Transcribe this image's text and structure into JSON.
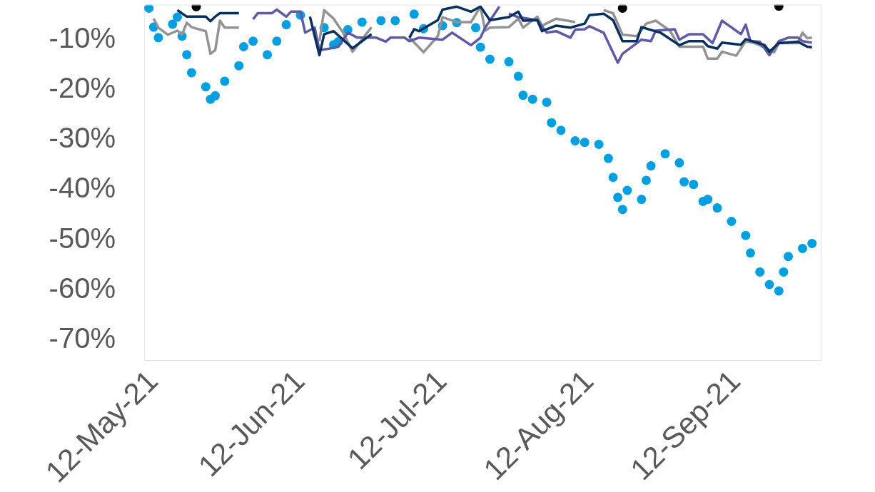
{
  "chart_data": {
    "type": "line",
    "marker": "none",
    "line_style": "solid",
    "xlim": [
      "2021-05-10",
      "2021-09-30"
    ],
    "xticks": [
      {
        "value": "2021-05-12",
        "label": "12-May-21"
      },
      {
        "value": "2021-06-12",
        "label": "12-Jun-21"
      },
      {
        "value": "2021-07-12",
        "label": "12-Jul-21"
      },
      {
        "value": "2021-08-12",
        "label": "12-Aug-21"
      },
      {
        "value": "2021-09-12",
        "label": "12-Sep-21"
      }
    ],
    "ylim": [
      -74,
      -3
    ],
    "yticks": [
      {
        "value": -70,
        "label": "-70%"
      },
      {
        "value": -60,
        "label": "-60%"
      },
      {
        "value": -50,
        "label": "-50%"
      },
      {
        "value": -40,
        "label": "-40%"
      },
      {
        "value": -30,
        "label": "-30%"
      },
      {
        "value": -20,
        "label": "-20%"
      },
      {
        "value": -10,
        "label": "-10%"
      }
    ],
    "series": [
      {
        "type": "scatter",
        "marker": "circle",
        "color": "#000000",
        "x": [
          "2021-05-21",
          "2021-08-19",
          "2021-09-21"
        ],
        "values": [
          -3.4,
          -3.7,
          -3.3
        ]
      },
      {
        "color": "#06305e",
        "x": [
          "2021-05-17",
          "2021-05-19",
          "2021-05-23",
          "2021-05-24",
          "2021-05-25",
          "2021-05-26",
          "2021-05-30",
          "2021-05-31",
          "2021-06-12",
          "2021-06-14",
          "2021-06-16",
          "2021-06-17",
          "2021-06-19",
          "2021-06-23",
          "2021-06-27",
          "2021-06-28",
          "2021-07-03",
          "2021-07-05",
          "2021-07-06",
          "2021-07-07",
          "2021-07-11",
          "2021-07-12",
          "2021-07-15",
          "2021-07-18",
          "2021-07-20",
          "2021-07-22",
          "2021-07-26",
          "2021-07-28",
          "2021-07-29",
          "2021-08-01",
          "2021-08-02",
          "2021-08-05",
          "2021-08-08",
          "2021-08-11",
          "2021-08-12",
          "2021-08-15",
          "2021-08-17",
          "2021-08-19",
          "2021-08-22",
          "2021-08-23",
          "2021-08-27",
          "2021-08-31",
          "2021-09-02",
          "2021-09-05",
          "2021-09-06",
          "2021-09-08",
          "2021-09-09",
          "2021-09-13",
          "2021-09-14",
          "2021-09-18",
          "2021-09-19",
          "2021-09-21",
          "2021-09-25",
          "2021-09-27",
          "2021-09-28"
        ],
        "values": [
          -4.1,
          -5.4,
          -5.4,
          -6.3,
          -5.4,
          -4.7,
          -4.7,
          null,
          null,
          -5.4,
          -13.1,
          -8.9,
          -8.3,
          -11.7,
          -8.9,
          null,
          null,
          -9.6,
          -7.9,
          -8.3,
          -6.1,
          -4.0,
          -3.4,
          -4.4,
          -3.4,
          -6.1,
          -5.5,
          -4.4,
          -6.2,
          -6.1,
          -8.3,
          -7.2,
          -7.6,
          -6.8,
          -5.1,
          -4.8,
          -6.1,
          -10.3,
          -10.3,
          -7.5,
          -8.6,
          -11.1,
          -10.3,
          -10.3,
          -11.3,
          -11.8,
          -10.6,
          -11.0,
          -9.9,
          -11.1,
          -12.4,
          -10.7,
          -10.4,
          -11.4,
          -11.5
        ]
      },
      {
        "color": "#5f5aa8",
        "x": [
          "2021-06-02",
          "2021-06-03",
          "2021-06-06",
          "2021-06-07",
          "2021-06-09",
          "2021-06-10",
          "2021-06-12",
          "2021-06-13",
          "2021-06-15",
          "2021-06-16",
          "2021-06-18",
          "2021-06-20",
          "2021-06-21",
          "2021-06-22",
          "2021-06-24",
          "2021-06-28",
          "2021-06-30",
          "2021-07-01",
          "2021-07-04",
          "2021-07-05",
          "2021-07-07",
          "2021-07-12",
          "2021-07-14",
          "2021-07-18",
          "2021-07-20",
          "2021-07-21",
          "2021-07-24",
          "2021-07-25",
          "2021-07-26",
          "2021-07-28",
          "2021-08-01",
          "2021-08-03",
          "2021-08-05",
          "2021-08-08",
          "2021-08-09",
          "2021-08-11",
          "2021-08-12",
          "2021-08-15",
          "2021-08-18",
          "2021-08-19",
          "2021-08-23",
          "2021-08-25",
          "2021-08-26",
          "2021-08-30",
          "2021-08-31",
          "2021-09-02",
          "2021-09-05",
          "2021-09-07",
          "2021-09-09",
          "2021-09-13",
          "2021-09-14",
          "2021-09-15",
          "2021-09-17",
          "2021-09-19",
          "2021-09-21",
          "2021-09-23",
          "2021-09-25",
          "2021-09-26",
          "2021-09-28"
        ],
        "values": [
          -5.9,
          -4.7,
          -4.7,
          -4.0,
          -5.4,
          -4.4,
          -4.4,
          -8.6,
          -7.6,
          -12.1,
          -11.8,
          -11.4,
          -10.0,
          -8.6,
          -9.6,
          -9.6,
          -10.4,
          -9.6,
          -9.6,
          -10.3,
          -9.6,
          -10.0,
          -8.6,
          -11.1,
          -9.6,
          -7.6,
          -3.4,
          null,
          -4.8,
          -5.5,
          -6.1,
          -8.6,
          -8.3,
          -9.6,
          -8.0,
          -7.9,
          -7.3,
          -8.6,
          -14.6,
          -12.8,
          -10.0,
          -10.3,
          -8.2,
          -7.9,
          -10.0,
          -8.9,
          -8.9,
          -10.7,
          -6.2,
          -8.9,
          -7.0,
          -10.3,
          -10.4,
          -13.1,
          -10.3,
          -9.6,
          -9.6,
          -10.3,
          -10.6
        ]
      },
      {
        "color": "#939393",
        "x": [
          "2021-05-12",
          "2021-05-13",
          "2021-05-15",
          "2021-05-17",
          "2021-05-18",
          "2021-05-19",
          "2021-05-20",
          "2021-05-23",
          "2021-05-24",
          "2021-05-25",
          "2021-05-26",
          "2021-05-27",
          "2021-05-30",
          "2021-05-31",
          "2021-06-14",
          "2021-06-16",
          "2021-06-17",
          "2021-06-19",
          "2021-06-21",
          "2021-06-23",
          "2021-06-27",
          "2021-06-28",
          "2021-07-05",
          "2021-07-08",
          "2021-07-11",
          "2021-07-12",
          "2021-07-15",
          "2021-07-18",
          "2021-07-20",
          "2021-07-21",
          "2021-07-22",
          "2021-07-26",
          "2021-07-28",
          "2021-07-29",
          "2021-08-01",
          "2021-08-02",
          "2021-08-05",
          "2021-08-09",
          "2021-08-11",
          "2021-08-15",
          "2021-08-17",
          "2021-08-19",
          "2021-08-22",
          "2021-08-24",
          "2021-08-26",
          "2021-08-29",
          "2021-08-31",
          "2021-09-05",
          "2021-09-06",
          "2021-09-08",
          "2021-09-09",
          "2021-09-12",
          "2021-09-14",
          "2021-09-16",
          "2021-09-20",
          "2021-09-21",
          "2021-09-25",
          "2021-09-26",
          "2021-09-27",
          "2021-09-28"
        ],
        "values": [
          -5.8,
          -7.6,
          -9.0,
          -8.2,
          -9.0,
          -6.6,
          -7.5,
          -8.3,
          -12.8,
          -12.1,
          -6.2,
          -7.6,
          -7.6,
          null,
          null,
          -10.3,
          -4.1,
          -5.8,
          -8.6,
          -12.4,
          -7.5,
          null,
          -9.6,
          -12.5,
          -9.3,
          -5.5,
          -6.5,
          -6.5,
          -3.4,
          -8.2,
          -7.6,
          -7.5,
          -5.8,
          -7.6,
          -5.4,
          -7.2,
          -5.8,
          -6.5,
          null,
          -4.1,
          -4.7,
          -9.0,
          -9.3,
          -6.8,
          -6.2,
          -8.2,
          -11.4,
          -11.4,
          -13.8,
          -13.8,
          -12.4,
          -13.2,
          -10.3,
          -10.7,
          -12.5,
          -10.7,
          -10.7,
          -8.6,
          -9.7,
          -9.6
        ]
      },
      {
        "type": "scatter",
        "marker": "circle",
        "color": "#009fe0",
        "x": [
          "2021-05-11",
          "2021-05-12",
          "2021-05-13",
          "2021-05-16",
          "2021-05-17",
          "2021-05-18",
          "2021-05-19",
          "2021-05-20",
          "2021-05-23",
          "2021-05-24",
          "2021-05-25",
          "2021-05-27",
          "2021-05-30",
          "2021-05-31",
          "2021-06-02",
          "2021-06-05",
          "2021-06-07",
          "2021-06-09",
          "2021-06-12",
          "2021-06-17",
          "2021-06-19",
          "2021-06-20",
          "2021-06-22",
          "2021-06-25",
          "2021-06-29",
          "2021-07-02",
          "2021-07-06",
          "2021-07-08",
          "2021-07-12",
          "2021-07-15",
          "2021-07-19",
          "2021-07-20",
          "2021-07-22",
          "2021-07-26",
          "2021-07-28",
          "2021-07-29",
          "2021-07-31",
          "2021-08-03",
          "2021-08-04",
          "2021-08-06",
          "2021-08-09",
          "2021-08-11",
          "2021-08-14",
          "2021-08-16",
          "2021-08-17",
          "2021-08-18",
          "2021-08-19",
          "2021-08-20",
          "2021-08-23",
          "2021-08-24",
          "2021-08-25",
          "2021-08-28",
          "2021-08-31",
          "2021-09-01",
          "2021-09-03",
          "2021-09-05",
          "2021-09-06",
          "2021-09-08",
          "2021-09-11",
          "2021-09-14",
          "2021-09-15",
          "2021-09-17",
          "2021-09-19",
          "2021-09-21",
          "2021-09-22",
          "2021-09-23",
          "2021-09-26",
          "2021-09-28"
        ],
        "values": [
          -3.7,
          -7.5,
          -9.6,
          -6.9,
          -5.5,
          -9.3,
          -13.0,
          -16.6,
          -19.4,
          -21.9,
          -21.2,
          -18.3,
          -15.2,
          -11.4,
          -10.3,
          -13.0,
          -10.3,
          -7.0,
          -5.1,
          -7.6,
          -11.0,
          -10.4,
          -8.0,
          -6.5,
          -6.2,
          -6.2,
          -4.9,
          -7.8,
          -7.2,
          -6.6,
          -7.6,
          -11.5,
          -13.9,
          -14.4,
          -17.3,
          -21.1,
          -21.9,
          -22.5,
          -26.6,
          -28.1,
          -30.2,
          -30.5,
          -30.9,
          -33.7,
          -37.5,
          -41.5,
          -43.9,
          -40.1,
          -41.9,
          -38.1,
          -35.2,
          -32.8,
          -34.6,
          -38.4,
          -38.9,
          -42.3,
          -41.9,
          -43.6,
          -46.3,
          -49.1,
          -52.6,
          -56.4,
          -58.9,
          -60.2,
          -56.4,
          -53.3,
          -51.7,
          -50.7
        ]
      }
    ]
  }
}
